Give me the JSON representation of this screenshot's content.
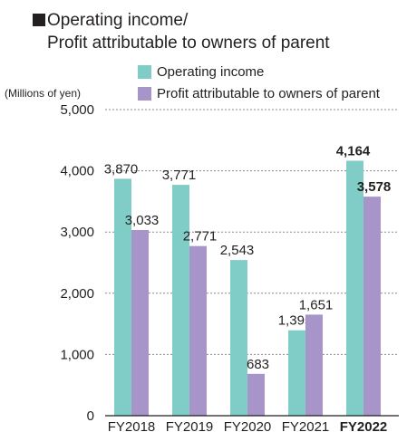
{
  "title_lines": [
    "Operating income/",
    "Profit attributable to owners of parent"
  ],
  "legend": [
    {
      "label": "Operating income",
      "color": "#7fcdc6"
    },
    {
      "label": "Profit attributable to owners of parent",
      "color": "#a794c8"
    }
  ],
  "unit_label": "(Millions of yen)",
  "chart_data": {
    "type": "bar",
    "categories": [
      "FY2018",
      "FY2019",
      "FY2020",
      "FY2021",
      "FY2022"
    ],
    "highlight_category": "FY2022",
    "series": [
      {
        "name": "Operating income",
        "color": "#7fcdc6",
        "values": [
          3870,
          3771,
          2543,
          1395,
          4164
        ],
        "labels": [
          "3,870",
          "3,771",
          "2,543",
          "1,395",
          "4,164"
        ]
      },
      {
        "name": "Profit attributable to owners of parent",
        "color": "#a794c8",
        "values": [
          3033,
          2771,
          683,
          1651,
          3578
        ],
        "labels": [
          "3,033",
          "2,771",
          "683",
          "1,651",
          "3,578"
        ]
      }
    ],
    "ylim": [
      0,
      5000
    ],
    "yticks": [
      0,
      1000,
      2000,
      3000,
      4000,
      5000
    ],
    "ytick_labels": [
      "0",
      "1,000",
      "2,000",
      "3,000",
      "4,000",
      "5,000"
    ],
    "grid": "dashed horizontal",
    "legend_position": "top-right"
  }
}
